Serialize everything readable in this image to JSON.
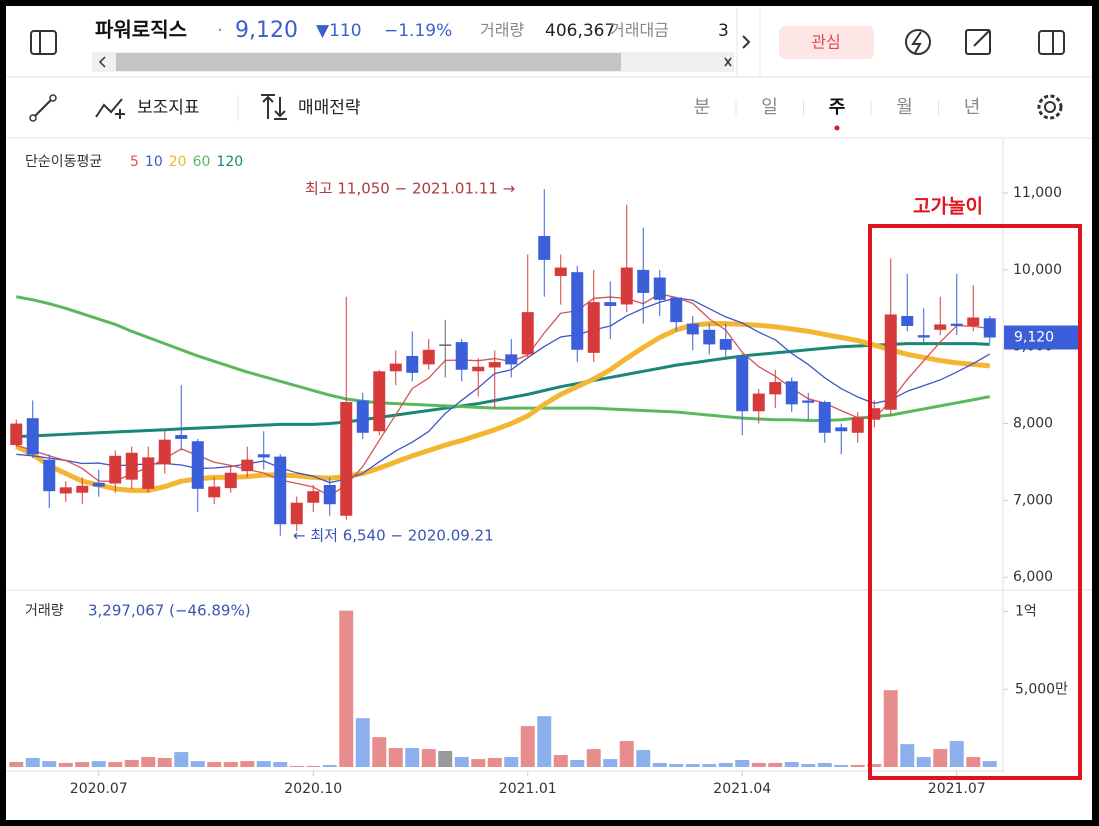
{
  "header": {
    "title": "파워로직스",
    "separator": "·",
    "price": "9,120",
    "change": "▼110",
    "change_pct": "−1.19%",
    "volume_label": "거래량",
    "volume": "406,367",
    "amount_label": "거래대금",
    "amount": "3",
    "watch_button": "관심"
  },
  "toolbar": {
    "indicator_button": "보조지표",
    "strategy_button": "매매전략",
    "periods": [
      "분",
      "일",
      "주",
      "월",
      "년"
    ],
    "selected_period": "주"
  },
  "highlight_label": "고가놀이",
  "chart_data": {
    "type": "candlestick",
    "categories": [
      null,
      null,
      null,
      null,
      null,
      "2020.07",
      null,
      null,
      null,
      null,
      null,
      null,
      null,
      null,
      null,
      null,
      null,
      null,
      "2020.10",
      null,
      null,
      null,
      null,
      null,
      null,
      null,
      null,
      null,
      null,
      null,
      null,
      "2021.01",
      null,
      null,
      null,
      null,
      null,
      null,
      null,
      null,
      null,
      null,
      null,
      null,
      "2021.04",
      null,
      null,
      null,
      null,
      null,
      null,
      null,
      null,
      null,
      null,
      null,
      null,
      "2021.07",
      null,
      null
    ],
    "open": [
      7720,
      8070,
      7530,
      7090,
      7100,
      7230,
      7220,
      7270,
      7150,
      7470,
      7850,
      7770,
      7040,
      7160,
      7380,
      7600,
      7570,
      6690,
      6970,
      7200,
      6800,
      8300,
      7900,
      8680,
      8880,
      8770,
      9030,
      9060,
      8680,
      8730,
      8900,
      8900,
      10440,
      9920,
      9970,
      8920,
      9580,
      9550,
      10000,
      9900,
      9640,
      9300,
      9220,
      9100,
      8880,
      8160,
      8380,
      8550,
      8300,
      8280,
      7950,
      7880,
      8050,
      8180,
      9400,
      9150,
      9220,
      9300,
      9270,
      9370
    ],
    "high": [
      8050,
      8300,
      7600,
      7250,
      7300,
      7400,
      7650,
      7700,
      7700,
      7900,
      8500,
      7800,
      7300,
      7450,
      7700,
      7900,
      7600,
      7050,
      7200,
      7300,
      9650,
      8400,
      8700,
      8950,
      9200,
      9100,
      9350,
      9100,
      8850,
      8950,
      9100,
      10200,
      11050,
      10200,
      10050,
      10000,
      9850,
      10850,
      10550,
      10000,
      9650,
      9400,
      9300,
      9300,
      8900,
      8450,
      8700,
      8600,
      8400,
      8300,
      8000,
      8150,
      8300,
      10150,
      9950,
      9500,
      9650,
      9950,
      9800,
      9400
    ],
    "low": [
      7700,
      7550,
      6900,
      6980,
      6950,
      7050,
      7100,
      7150,
      7100,
      7350,
      7650,
      6850,
      6950,
      7100,
      7300,
      7400,
      6540,
      6600,
      6850,
      6800,
      6750,
      7800,
      7850,
      8500,
      8550,
      8700,
      8600,
      8550,
      8350,
      8200,
      8600,
      8850,
      9650,
      9550,
      8800,
      8800,
      9100,
      9450,
      9300,
      9400,
      9200,
      8950,
      8900,
      8850,
      7850,
      8000,
      8200,
      8150,
      8050,
      7750,
      7600,
      7750,
      7950,
      8100,
      9200,
      9050,
      9150,
      9150,
      9200,
      9050
    ],
    "close": [
      8000,
      7600,
      7120,
      7170,
      7190,
      7180,
      7580,
      7620,
      7560,
      7790,
      7800,
      7150,
      7180,
      7360,
      7530,
      7560,
      6690,
      6970,
      7120,
      6950,
      8280,
      7880,
      8680,
      8780,
      8660,
      8960,
      9030,
      8700,
      8740,
      8800,
      8770,
      9450,
      10130,
      10030,
      8960,
      9580,
      9530,
      10030,
      9700,
      9610,
      9320,
      9160,
      9030,
      8960,
      8160,
      8390,
      8540,
      8250,
      8270,
      7880,
      7900,
      8080,
      8200,
      9420,
      9270,
      9120,
      9290,
      9270,
      9380,
      9120
    ],
    "up_color": "#d63a3a",
    "down_color": "#3b5fd8",
    "flat_color": "#666666",
    "ylim": [
      5860,
      11690
    ],
    "yticks": [
      {
        "value": 11000,
        "label": "11,000"
      },
      {
        "value": 10000,
        "label": "10,000"
      },
      {
        "value": 9000,
        "label": "9,000"
      },
      {
        "value": 8000,
        "label": "8,000"
      },
      {
        "value": 7000,
        "label": "7,000"
      },
      {
        "value": 6000,
        "label": "6,000"
      }
    ],
    "last_price_label": "9,120",
    "indicator_label": "단순이동평균",
    "series": [
      {
        "name": "5",
        "color": "#d9534f",
        "values": [
          7720,
          7650,
          7580,
          7520,
          7416,
          7252,
          7248,
          7348,
          7426,
          7546,
          7670,
          7584,
          7496,
          7456,
          7404,
          7356,
          7264,
          7222,
          7174,
          7058,
          7202,
          7440,
          7782,
          8114,
          8456,
          8592,
          8822,
          8826,
          8818,
          8846,
          8808,
          8892,
          9178,
          9436,
          9468,
          9630,
          9646,
          9626,
          9560,
          9690,
          9638,
          9564,
          9364,
          9216,
          8926,
          8740,
          8616,
          8460,
          8322,
          8266,
          8168,
          8076,
          8066,
          8296,
          8574,
          8818,
          9060,
          9274,
          9266,
          9236
        ]
      },
      {
        "name": "10",
        "color": "#3f56c9",
        "values": [
          7600,
          7580,
          7550,
          7520,
          7480,
          7486,
          7449,
          7464,
          7473,
          7481,
          7461,
          7416,
          7422,
          7441,
          7475,
          7513,
          7424,
          7359,
          7315,
          7231,
          7279,
          7352,
          7502,
          7644,
          7757,
          7897,
          8131,
          8304,
          8466,
          8651,
          8700,
          8857,
          9002,
          9127,
          9157,
          9219,
          9269,
          9402,
          9498,
          9579,
          9634,
          9605,
          9495,
          9388,
          9308,
          9189,
          9090,
          8912,
          8769,
          8596,
          8454,
          8346,
          8263,
          8309,
          8420,
          8493,
          8568,
          8670,
          8781,
          8905
        ]
      },
      {
        "name": "20",
        "color": "#f2b632",
        "values": [
          7700,
          7600,
          7450,
          7350,
          7250,
          7200,
          7150,
          7130,
          7130,
          7180,
          7250,
          7280,
          7300,
          7300,
          7310,
          7330,
          7330,
          7320,
          7300,
          7290,
          7310,
          7350,
          7420,
          7500,
          7580,
          7650,
          7720,
          7780,
          7850,
          7920,
          8000,
          8100,
          8250,
          8380,
          8480,
          8580,
          8700,
          8850,
          8990,
          9120,
          9220,
          9280,
          9300,
          9300,
          9290,
          9280,
          9260,
          9230,
          9200,
          9160,
          9120,
          9080,
          9020,
          8960,
          8900,
          8860,
          8820,
          8790,
          8770,
          8750
        ]
      },
      {
        "name": "60",
        "color": "#5cb85c",
        "values": [
          9650,
          9610,
          9560,
          9500,
          9430,
          9360,
          9290,
          9200,
          9120,
          9040,
          8960,
          8880,
          8810,
          8740,
          8670,
          8610,
          8550,
          8490,
          8430,
          8370,
          8320,
          8290,
          8270,
          8260,
          8250,
          8240,
          8230,
          8220,
          8210,
          8200,
          8200,
          8200,
          8200,
          8200,
          8200,
          8200,
          8190,
          8180,
          8170,
          8160,
          8150,
          8130,
          8110,
          8090,
          8070,
          8060,
          8050,
          8050,
          8040,
          8040,
          8050,
          8070,
          8090,
          8110,
          8150,
          8190,
          8230,
          8270,
          8310,
          8350
        ]
      },
      {
        "name": "120",
        "color": "#1a8677",
        "values": [
          7830,
          7840,
          7850,
          7860,
          7870,
          7880,
          7890,
          7900,
          7910,
          7920,
          7930,
          7940,
          7950,
          7960,
          7970,
          7980,
          7990,
          7990,
          7990,
          8000,
          8020,
          8050,
          8080,
          8110,
          8140,
          8170,
          8200,
          8230,
          8260,
          8300,
          8340,
          8380,
          8430,
          8480,
          8520,
          8560,
          8600,
          8640,
          8680,
          8720,
          8760,
          8790,
          8820,
          8850,
          8880,
          8900,
          8920,
          8940,
          8960,
          8980,
          9000,
          9010,
          9020,
          9030,
          9040,
          9040,
          9040,
          9040,
          9040,
          9030
        ]
      }
    ],
    "annotations": [
      "최고 11,050 − 2021.01.11 →",
      "← 최저 6,540 − 2020.09.21"
    ],
    "volume": {
      "label": "거래량",
      "summary": "3,297,067 (−46.89%)",
      "up_color": "#e88d8d",
      "down_color": "#8cb0ee",
      "flat_color": "#999999",
      "values": [
        3200000,
        5800000,
        3800000,
        2600000,
        3200000,
        3800000,
        3200000,
        4500000,
        6400000,
        5800000,
        9600000,
        3800000,
        3200000,
        3200000,
        3800000,
        3800000,
        3200000,
        700000,
        700000,
        1300000,
        100600000,
        31400000,
        19200000,
        12200000,
        12200000,
        11500000,
        10300000,
        6400000,
        5100000,
        5800000,
        6400000,
        26300000,
        32700000,
        7700000,
        4500000,
        11500000,
        5100000,
        16700000,
        10900000,
        2600000,
        1900000,
        1900000,
        1900000,
        2600000,
        4500000,
        2600000,
        2600000,
        3200000,
        1900000,
        2600000,
        1300000,
        1300000,
        1900000,
        49400000,
        14700000,
        6400000,
        11500000,
        16700000,
        6400000,
        3800000
      ],
      "ylim": [
        0,
        110000000
      ],
      "yticks": [
        {
          "value": 100000000,
          "label": "1억"
        },
        {
          "value": 50000000,
          "label": "5,000만"
        }
      ]
    }
  }
}
